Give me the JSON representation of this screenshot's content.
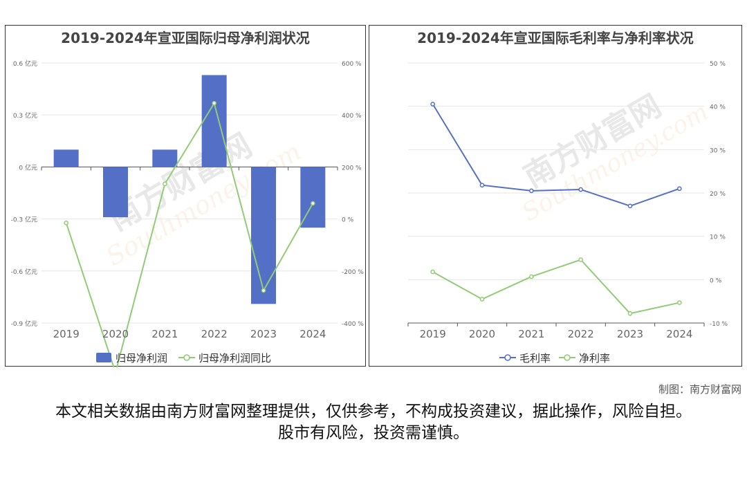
{
  "chart_data": [
    {
      "type": "bar",
      "title": "2019-2024年宣亚国际归母净利润状况",
      "categories": [
        "2019",
        "2020",
        "2021",
        "2022",
        "2023",
        "2024"
      ],
      "series": [
        {
          "name": "归母净利润",
          "type": "bar",
          "axis": "left",
          "values": [
            0.1,
            -0.29,
            0.1,
            0.53,
            -0.79,
            -0.35
          ]
        },
        {
          "name": "归母净利润同比",
          "type": "line",
          "axis": "right",
          "values": [
            -15,
            -590,
            135,
            445,
            -275,
            60
          ]
        }
      ],
      "y_left": {
        "ylim": [
          -0.9,
          0.6
        ],
        "ticks": [
          0.6,
          0.3,
          0,
          -0.3,
          -0.6,
          -0.9
        ],
        "tick_labels": [
          "0.6 亿元",
          "0.3 亿元",
          "0 亿元",
          "-0.3 亿元",
          "-0.6 亿元",
          "-0.9 亿元"
        ]
      },
      "y_right": {
        "ylim": [
          -400,
          600
        ],
        "ticks": [
          600,
          400,
          200,
          0,
          -200,
          -400
        ],
        "tick_labels": [
          "600 %",
          "400 %",
          "200 %",
          "0 %",
          "-200 %",
          "-400 %"
        ]
      },
      "grid": true,
      "legend": "bottom",
      "colors": {
        "bar": "#5470c6",
        "line": "#91cc75"
      }
    },
    {
      "type": "line",
      "title": "2019-2024年宣亚国际毛利率与净利率状况",
      "categories": [
        "2019",
        "2020",
        "2021",
        "2022",
        "2023",
        "2024"
      ],
      "series": [
        {
          "name": "毛利率",
          "values": [
            40.5,
            21.8,
            20.5,
            20.8,
            17.0,
            21.0
          ]
        },
        {
          "name": "净利率",
          "values": [
            1.8,
            -4.5,
            0.7,
            4.6,
            -7.8,
            -5.3
          ]
        }
      ],
      "y_right": {
        "ylim": [
          -10,
          50
        ],
        "ticks": [
          50,
          40,
          30,
          20,
          10,
          0,
          -10
        ],
        "tick_labels": [
          "50 %",
          "40 %",
          "30 %",
          "20 %",
          "10 %",
          "0 %",
          "-10 %"
        ]
      },
      "grid": true,
      "legend": "bottom",
      "colors": {
        "毛利率": "#5470c6",
        "净利率": "#91cc75"
      }
    }
  ],
  "credit": "制图：南方财富网",
  "disclaimer": "本文相关数据由南方财富网整理提供，仅供参考，不构成投资建议，据此操作，风险自担。股市有风险，投资需谨慎。",
  "watermark": {
    "brand": "南方财富网",
    "domain": "Southmoney.com"
  }
}
